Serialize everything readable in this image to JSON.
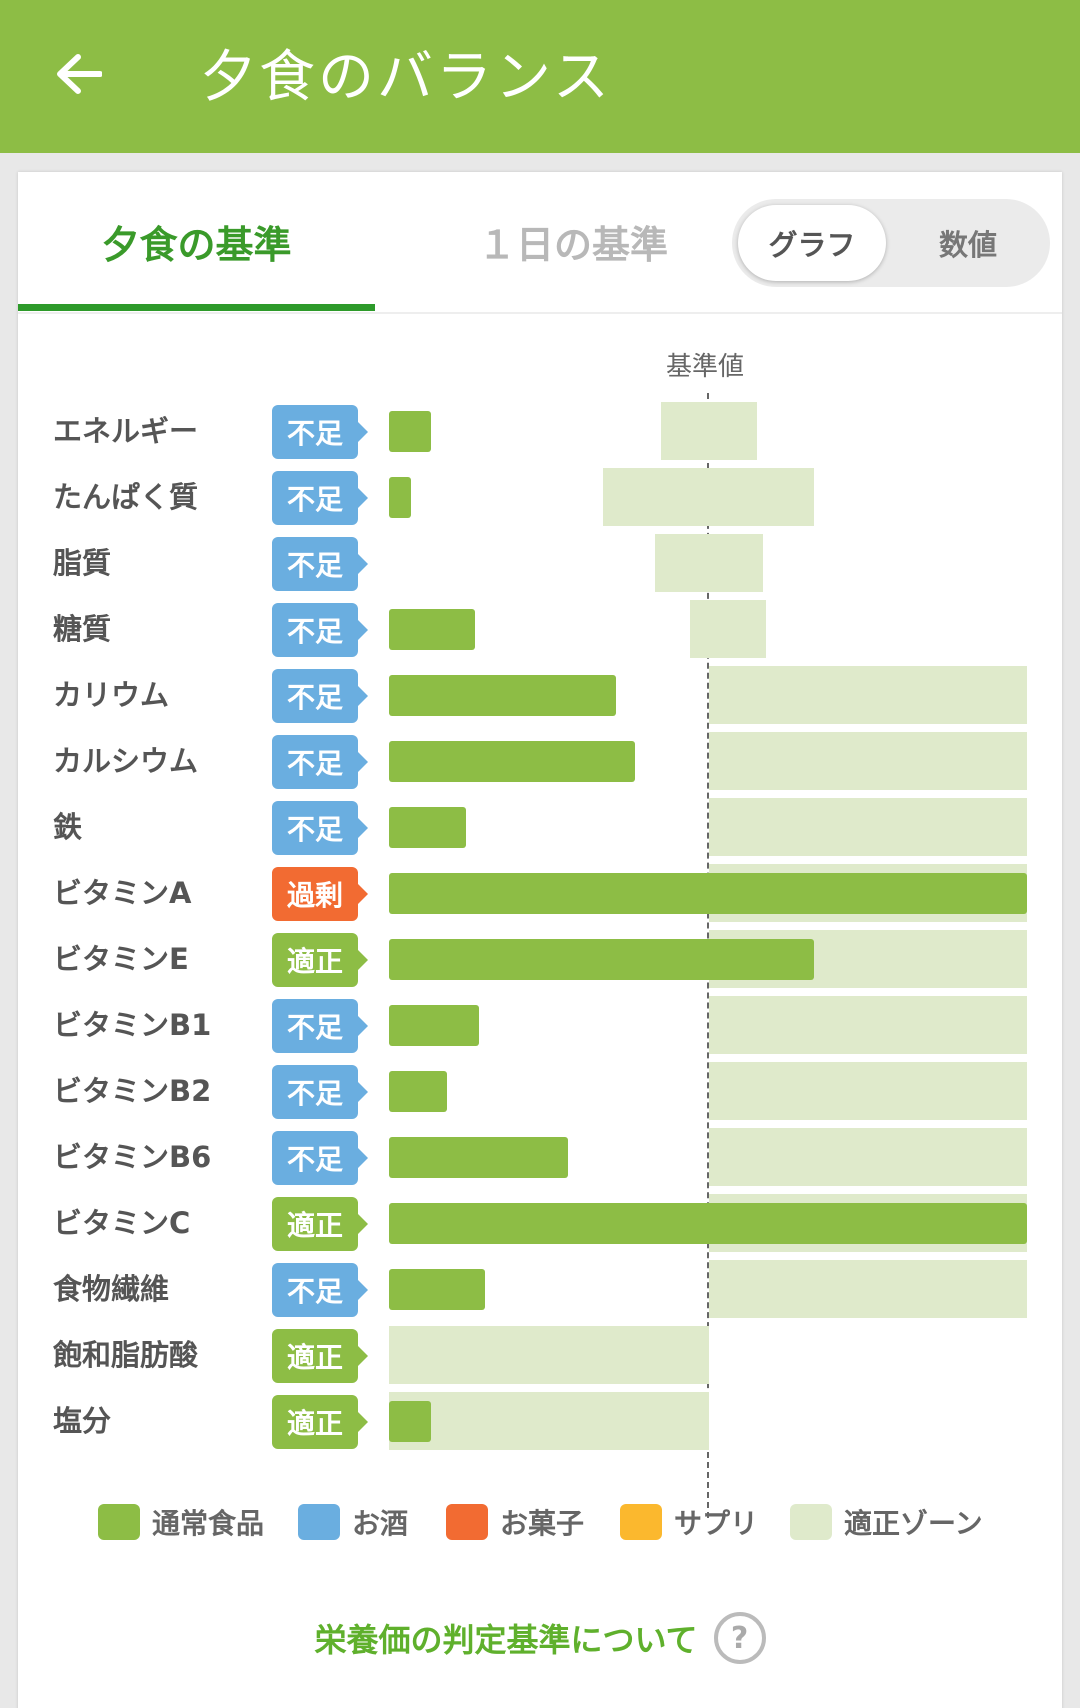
{
  "appbar": {
    "title": "夕食のバランス",
    "back_icon": "arrow-left-icon"
  },
  "tabs": {
    "dinner": "夕食の基準",
    "day": "１日の基準"
  },
  "view_toggle": {
    "graph": "グラフ",
    "numeric": "数値",
    "selected": "graph"
  },
  "chart": {
    "reference_label": "基準値",
    "rows": [
      {
        "name": "エネルギー",
        "status": "不足",
        "status_type": "lack",
        "amount_ratio": 0.13,
        "zone": [
          0.85,
          1.15
        ]
      },
      {
        "name": "たんぱく質",
        "status": "不足",
        "status_type": "lack",
        "amount_ratio": 0.07,
        "zone": [
          0.67,
          1.33
        ]
      },
      {
        "name": "脂質",
        "status": "不足",
        "status_type": "lack",
        "amount_ratio": 0,
        "zone": [
          0.83,
          1.17
        ]
      },
      {
        "name": "糖質",
        "status": "不足",
        "status_type": "lack",
        "amount_ratio": 0.27,
        "zone": [
          0.94,
          1.18
        ]
      },
      {
        "name": "カリウム",
        "status": "不足",
        "status_type": "lack",
        "amount_ratio": 0.71,
        "zone": [
          1.0,
          2.0
        ]
      },
      {
        "name": "カルシウム",
        "status": "不足",
        "status_type": "lack",
        "amount_ratio": 0.77,
        "zone": [
          1.0,
          2.0
        ]
      },
      {
        "name": "鉄",
        "status": "不足",
        "status_type": "lack",
        "amount_ratio": 0.24,
        "zone": [
          1.0,
          2.0
        ]
      },
      {
        "name": "ビタミンA",
        "status": "過剰",
        "status_type": "over",
        "amount_ratio": 2.0,
        "zone": [
          1.0,
          2.0
        ]
      },
      {
        "name": "ビタミンE",
        "status": "適正",
        "status_type": "ok",
        "amount_ratio": 1.33,
        "zone": [
          1.0,
          2.0
        ]
      },
      {
        "name": "ビタミンB1",
        "status": "不足",
        "status_type": "lack",
        "amount_ratio": 0.28,
        "zone": [
          1.0,
          2.0
        ]
      },
      {
        "name": "ビタミンB2",
        "status": "不足",
        "status_type": "lack",
        "amount_ratio": 0.18,
        "zone": [
          1.0,
          2.0
        ]
      },
      {
        "name": "ビタミンB6",
        "status": "不足",
        "status_type": "lack",
        "amount_ratio": 0.56,
        "zone": [
          1.0,
          2.0
        ]
      },
      {
        "name": "ビタミンC",
        "status": "適正",
        "status_type": "ok",
        "amount_ratio": 2.0,
        "zone": [
          1.0,
          2.0
        ]
      },
      {
        "name": "食物繊維",
        "status": "不足",
        "status_type": "lack",
        "amount_ratio": 0.3,
        "zone": [
          1.0,
          2.0
        ]
      },
      {
        "name": "飽和脂肪酸",
        "status": "適正",
        "status_type": "ok",
        "amount_ratio": 0,
        "zone": [
          0,
          1.0
        ]
      },
      {
        "name": "塩分",
        "status": "適正",
        "status_type": "ok",
        "amount_ratio": 0.13,
        "zone": [
          0,
          1.0
        ]
      }
    ]
  },
  "legend": [
    {
      "label": "通常食品",
      "color": "#8dbd45"
    },
    {
      "label": "お酒",
      "color": "#6aaee0"
    },
    {
      "label": "お菓子",
      "color": "#f26b32"
    },
    {
      "label": "サプリ",
      "color": "#fbb82e"
    },
    {
      "label": "適正ゾーン",
      "color": "#dfeacb"
    }
  ],
  "criteria_link": {
    "label": "栄養価の判定基準について",
    "icon": "question-circle-icon"
  },
  "colors": {
    "brand": "#8dbd45",
    "active_tab": "#3a9a2a",
    "lack": "#6aaee0",
    "over": "#f26b32",
    "ok": "#8dbd45"
  }
}
